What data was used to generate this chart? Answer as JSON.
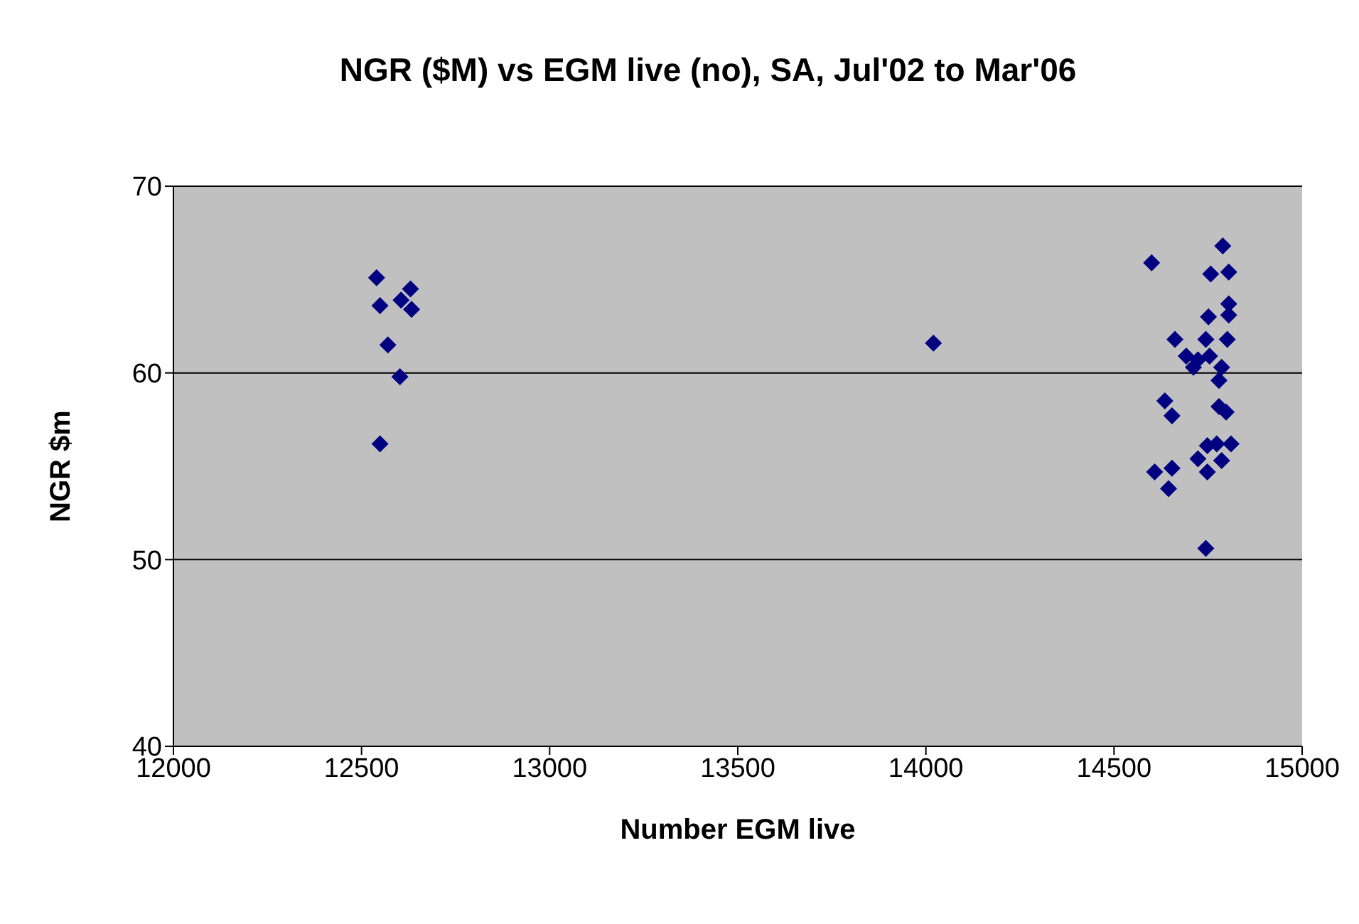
{
  "chart_data": {
    "type": "scatter",
    "title": "NGR ($M) vs EGM live (no), SA, Jul'02 to Mar'06",
    "xlabel": "Number EGM live",
    "ylabel": "NGR $m",
    "xlim": [
      12000,
      15000
    ],
    "xticks": [
      12000,
      12500,
      13000,
      13500,
      14000,
      14500,
      15000
    ],
    "ylim": [
      40,
      70
    ],
    "yticks": [
      40,
      50,
      60,
      70
    ],
    "grid": "y",
    "marker": "diamond",
    "series": [
      {
        "color": "#000080",
        "x": [
          12540,
          12549,
          12570,
          12602,
          12549,
          12605,
          12630,
          12633,
          14020,
          14789,
          14600,
          14757,
          14805,
          14805,
          14805,
          14751,
          14662,
          14744,
          14801,
          14692,
          14723,
          14754,
          14711,
          14786,
          14779,
          14635,
          14654,
          14779,
          14798,
          14748,
          14811,
          14723,
          14786,
          14773,
          14608,
          14654,
          14645,
          14748,
          14744
        ],
        "values": [
          65.1,
          63.6,
          61.5,
          59.8,
          56.2,
          63.9,
          64.5,
          63.4,
          61.6,
          66.8,
          65.9,
          65.3,
          65.4,
          63.7,
          63.1,
          63.0,
          61.8,
          61.8,
          61.8,
          60.9,
          60.7,
          60.9,
          60.3,
          60.3,
          59.6,
          58.5,
          57.7,
          58.2,
          57.9,
          56.1,
          56.2,
          55.4,
          55.3,
          56.2,
          54.7,
          54.9,
          53.8,
          54.7,
          50.6
        ]
      }
    ]
  }
}
